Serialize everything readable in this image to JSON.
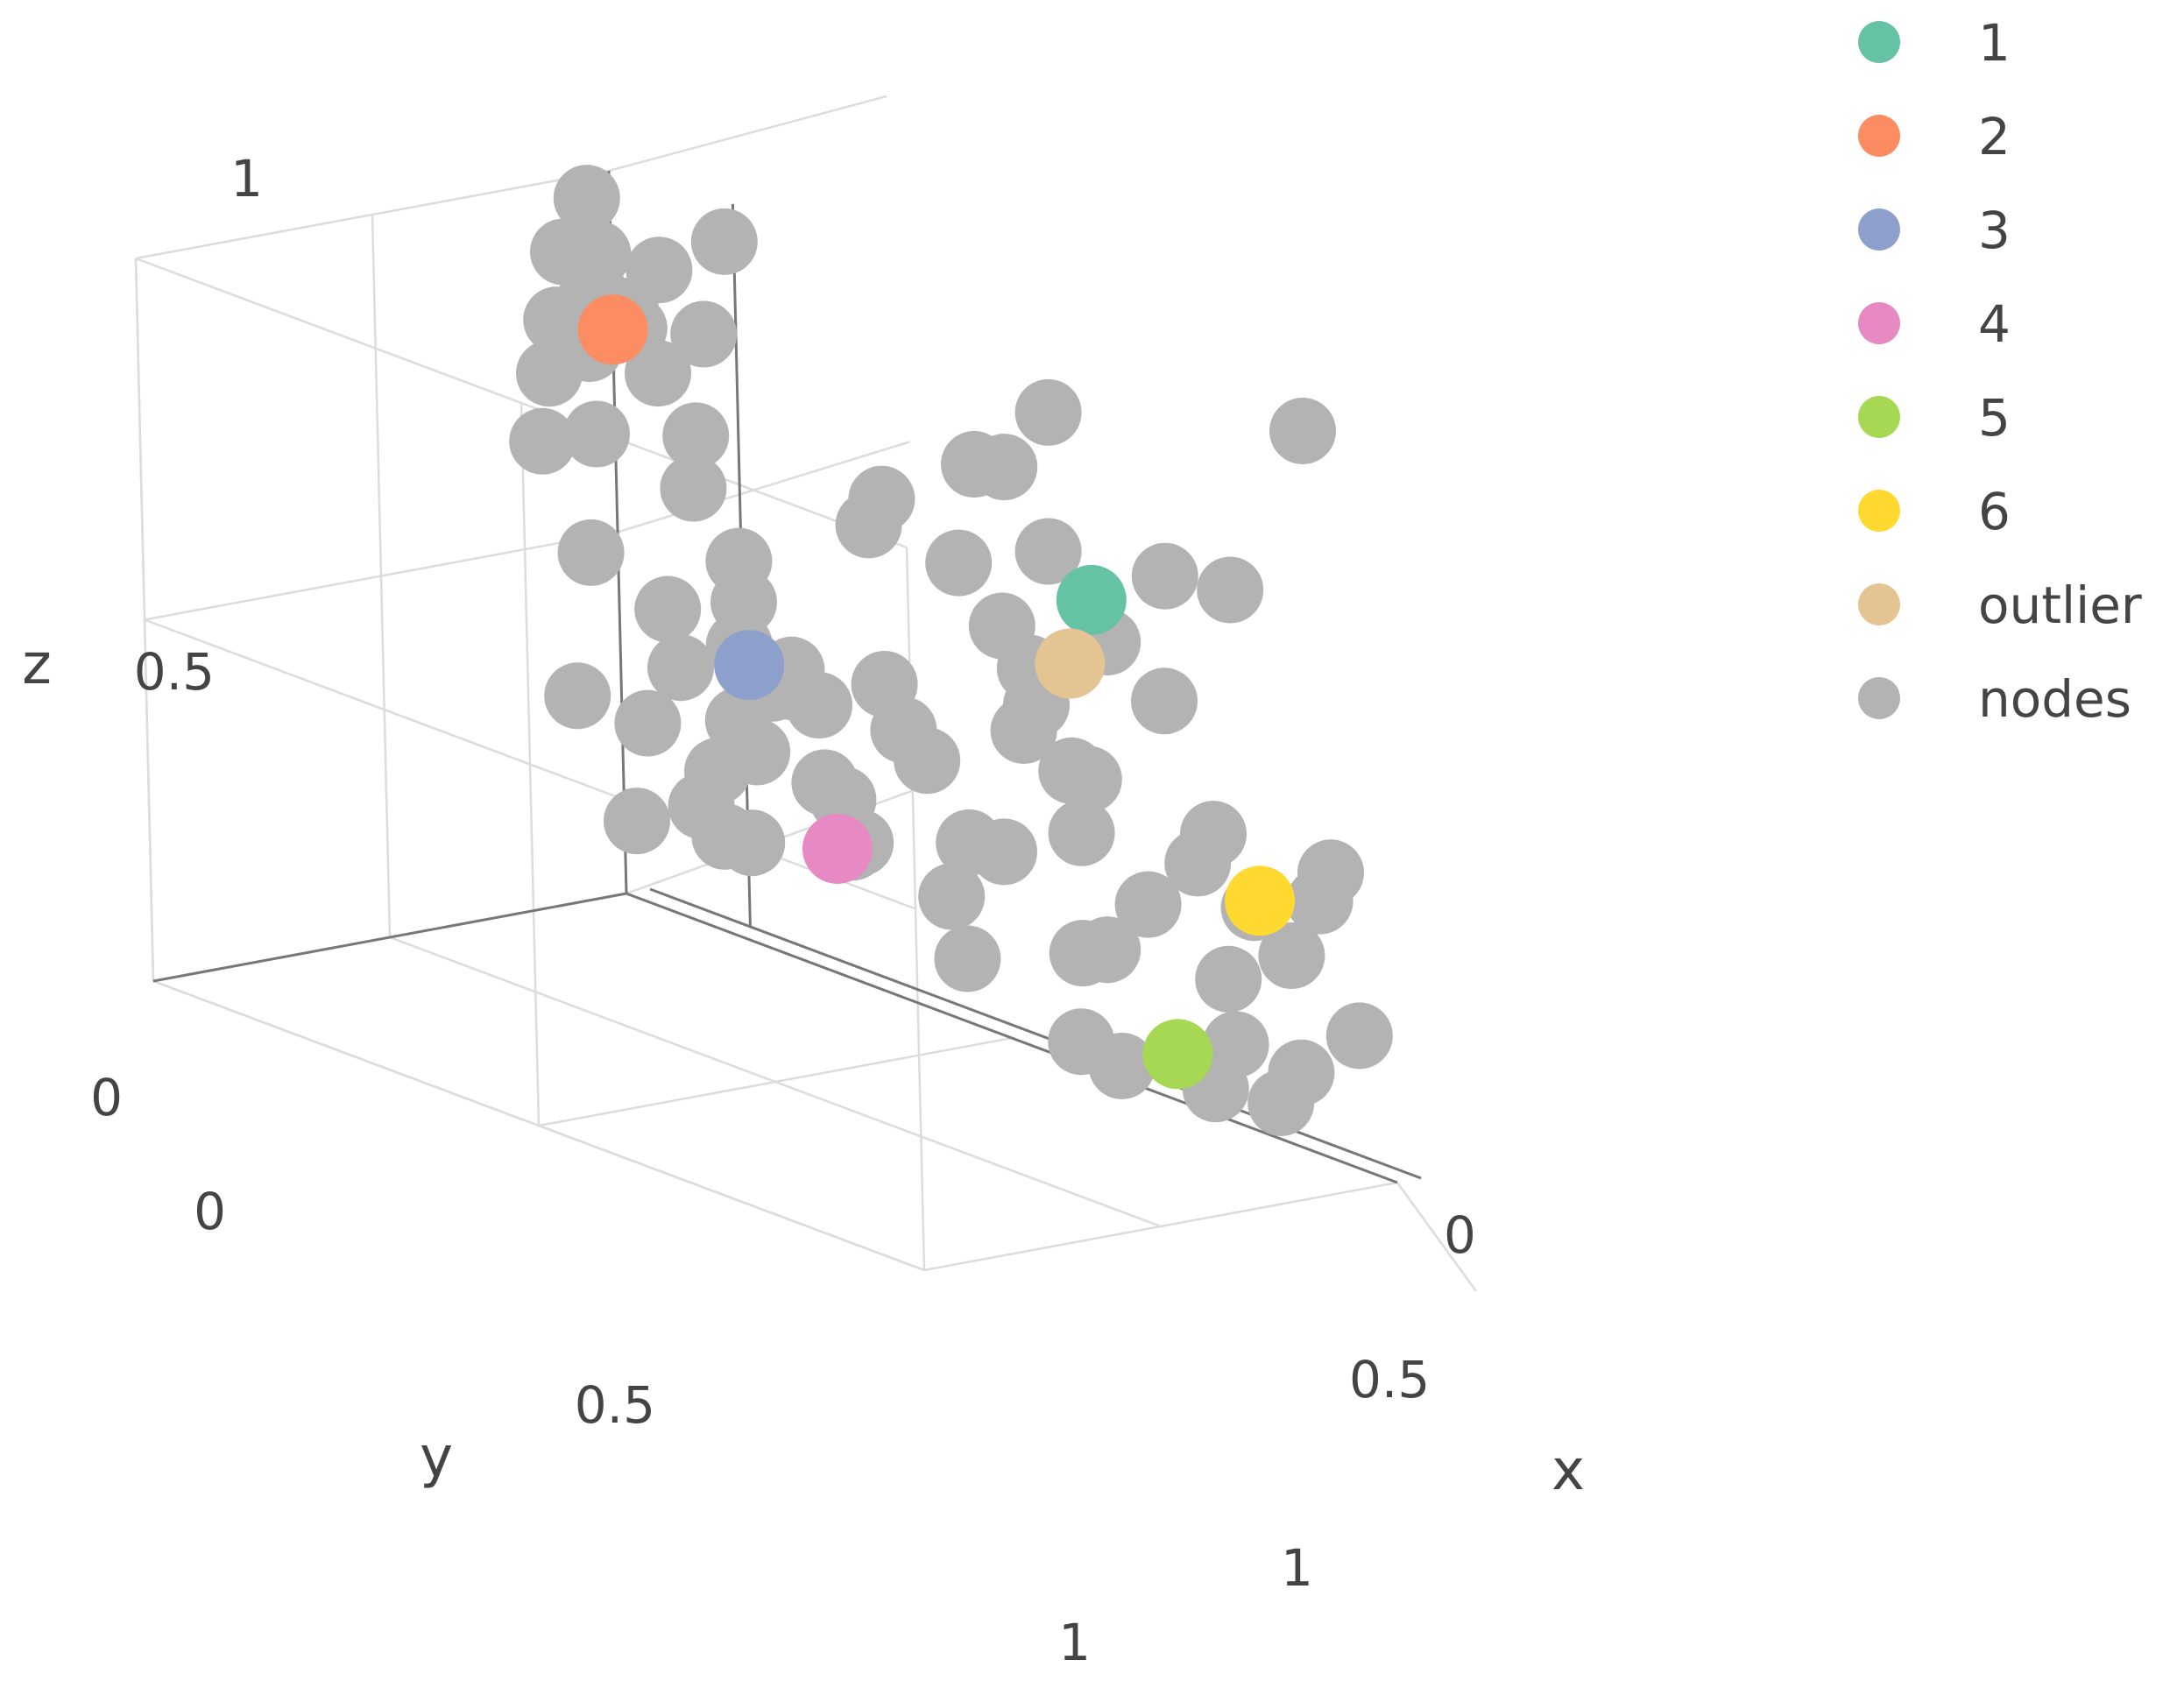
{
  "chart_data": {
    "type": "scatter3d",
    "axes": {
      "x": {
        "title": "x",
        "range": [
          0,
          1
        ],
        "ticks": [
          "0",
          "0.5",
          "1"
        ]
      },
      "y": {
        "title": "y",
        "range": [
          0,
          1
        ],
        "ticks": [
          "0",
          "0.5",
          "1"
        ]
      },
      "z": {
        "title": "z",
        "range": [
          0,
          1
        ],
        "ticks": [
          "0",
          "0.5",
          "1"
        ]
      }
    },
    "grid": true,
    "legend_position": "right",
    "series": [
      {
        "name": "1",
        "color": "#66c2a5",
        "points": [
          [
            0.73,
            0.18,
            0.72
          ]
        ]
      },
      {
        "name": "2",
        "color": "#fc8d62",
        "points": [
          [
            0.05,
            0.08,
            0.81
          ]
        ]
      },
      {
        "name": "3",
        "color": "#8da0cb",
        "points": [
          [
            0.28,
            0.18,
            0.45
          ]
        ]
      },
      {
        "name": "4",
        "color": "#e78ac3",
        "points": [
          [
            0.34,
            0.1,
            0.21
          ]
        ]
      },
      {
        "name": "5",
        "color": "#a6d854",
        "points": [
          [
            0.81,
            0.15,
            0.12
          ]
        ]
      },
      {
        "name": "6",
        "color": "#ffd92f",
        "points": [
          [
            0.86,
            0.05,
            0.34
          ]
        ]
      },
      {
        "name": "outlier",
        "color": "#e5c494",
        "points": [
          [
            0.7,
            0.18,
            0.62
          ]
        ]
      },
      {
        "name": "nodes",
        "color": "#b3b3b3",
        "points": [
          [
            0.02,
            0.08,
            0.98
          ],
          [
            0.0,
            0.1,
            0.9
          ],
          [
            0.05,
            0.12,
            0.87
          ],
          [
            0.1,
            0.06,
            0.91
          ],
          [
            0.08,
            0.1,
            0.85
          ],
          [
            0.02,
            0.15,
            0.82
          ],
          [
            0.12,
            0.1,
            0.78
          ],
          [
            0.04,
            0.2,
            0.76
          ],
          [
            0.15,
            0.05,
            0.84
          ],
          [
            0.0,
            0.05,
            0.76
          ],
          [
            0.18,
            0.12,
            0.72
          ],
          [
            0.1,
            0.2,
            0.7
          ],
          [
            0.07,
            0.14,
            0.93
          ],
          [
            0.14,
            0.18,
            0.86
          ],
          [
            0.03,
            0.03,
            0.8
          ],
          [
            0.2,
            0.16,
            0.66
          ],
          [
            0.06,
            0.25,
            0.68
          ],
          [
            0.22,
            0.1,
            0.56
          ],
          [
            0.12,
            0.25,
            0.55
          ],
          [
            0.25,
            0.14,
            0.52
          ],
          [
            0.2,
            0.22,
            0.5
          ],
          [
            0.28,
            0.2,
            0.48
          ],
          [
            0.3,
            0.12,
            0.42
          ],
          [
            0.24,
            0.26,
            0.44
          ],
          [
            0.33,
            0.18,
            0.45
          ],
          [
            0.36,
            0.22,
            0.48
          ],
          [
            0.26,
            0.1,
            0.4
          ],
          [
            0.32,
            0.27,
            0.4
          ],
          [
            0.22,
            0.3,
            0.36
          ],
          [
            0.3,
            0.2,
            0.34
          ],
          [
            0.38,
            0.15,
            0.3
          ],
          [
            0.26,
            0.22,
            0.3
          ],
          [
            0.4,
            0.22,
            0.34
          ],
          [
            0.16,
            0.35,
            0.38
          ],
          [
            0.34,
            0.28,
            0.24
          ],
          [
            0.3,
            0.32,
            0.28
          ],
          [
            0.28,
            0.24,
            0.22
          ],
          [
            0.36,
            0.1,
            0.22
          ],
          [
            0.42,
            0.18,
            0.26
          ],
          [
            0.24,
            0.36,
            0.24
          ],
          [
            0.46,
            0.1,
            0.38
          ],
          [
            0.5,
            0.08,
            0.28
          ],
          [
            0.48,
            0.18,
            0.44
          ],
          [
            0.42,
            0.26,
            0.46
          ],
          [
            0.5,
            0.25,
            0.52
          ],
          [
            0.55,
            0.08,
            0.6
          ],
          [
            0.58,
            0.06,
            0.5
          ],
          [
            0.6,
            0.12,
            0.48
          ],
          [
            0.64,
            0.05,
            0.42
          ],
          [
            0.66,
            0.1,
            0.36
          ],
          [
            0.62,
            0.2,
            0.33
          ],
          [
            0.68,
            0.15,
            0.46
          ],
          [
            0.55,
            0.2,
            0.24
          ],
          [
            0.6,
            0.25,
            0.18
          ],
          [
            0.67,
            0.12,
            0.2
          ],
          [
            0.72,
            0.06,
            0.28
          ],
          [
            0.74,
            0.18,
            0.24
          ],
          [
            0.78,
            0.05,
            0.36
          ],
          [
            0.82,
            0.08,
            0.42
          ],
          [
            0.84,
            0.03,
            0.32
          ],
          [
            0.9,
            0.05,
            0.28
          ],
          [
            0.92,
            0.02,
            0.36
          ],
          [
            0.96,
            0.06,
            0.42
          ],
          [
            0.86,
            0.12,
            0.24
          ],
          [
            0.74,
            0.24,
            0.12
          ],
          [
            0.78,
            0.22,
            0.1
          ],
          [
            0.84,
            0.12,
            0.08
          ],
          [
            0.88,
            0.14,
            0.16
          ],
          [
            0.9,
            0.08,
            0.08
          ],
          [
            0.94,
            0.1,
            0.14
          ],
          [
            0.98,
            0.04,
            0.2
          ],
          [
            0.66,
            0.2,
            0.6
          ],
          [
            0.7,
            0.1,
            0.64
          ],
          [
            0.76,
            0.08,
            0.58
          ],
          [
            0.74,
            0.04,
            0.74
          ],
          [
            0.8,
            0.0,
            0.74
          ],
          [
            0.7,
            0.22,
            0.78
          ],
          [
            0.62,
            0.18,
            0.86
          ],
          [
            0.58,
            0.02,
            0.9
          ],
          [
            0.9,
            0.0,
            1.0
          ],
          [
            0.44,
            0.15,
            0.74
          ],
          [
            0.5,
            0.05,
            0.8
          ],
          [
            0.52,
            0.12,
            0.68
          ],
          [
            0.36,
            0.05,
            0.66
          ],
          [
            0.18,
            0.05,
            0.98
          ]
        ]
      }
    ]
  }
}
